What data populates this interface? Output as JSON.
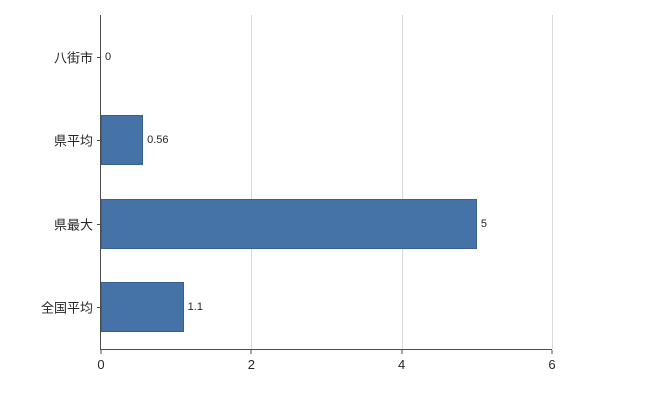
{
  "chart_data": {
    "type": "bar",
    "orientation": "horizontal",
    "title": "",
    "xlabel": "",
    "ylabel": "",
    "categories": [
      "八街市",
      "県平均",
      "県最大",
      "全国平均"
    ],
    "values": [
      0,
      0.56,
      5,
      1.1
    ],
    "value_labels": [
      "0",
      "0.56",
      "5",
      "1.1"
    ],
    "xlim": [
      0,
      6
    ],
    "x_ticks": [
      0,
      2,
      4,
      6
    ],
    "x_tick_labels": [
      "0",
      "2",
      "4",
      "6"
    ],
    "bar_color": "#4573a7",
    "bar_border_color": "#38608f",
    "grid": true,
    "gridline_color": "#d9d9d9",
    "legend_position": "none"
  }
}
